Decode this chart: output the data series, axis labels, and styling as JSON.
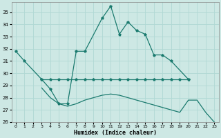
{
  "xlabel": "Humidex (Indice chaleur)",
  "bg_color": "#cde8e4",
  "grid_color": "#b0d8d4",
  "line_color": "#1a7a6e",
  "line1_x": [
    0,
    1,
    3,
    4,
    5,
    6,
    7,
    8,
    10,
    11,
    12,
    13,
    14,
    15,
    16,
    17,
    18,
    20
  ],
  "line1_y": [
    31.8,
    31.0,
    29.5,
    28.7,
    27.5,
    27.5,
    31.8,
    31.8,
    34.5,
    35.5,
    33.2,
    34.2,
    33.5,
    33.2,
    31.5,
    31.5,
    31.0,
    29.5
  ],
  "line2_x": [
    3,
    4,
    5,
    6,
    7,
    8,
    9,
    10,
    11,
    12,
    13,
    14,
    15,
    16,
    17,
    18,
    19,
    20
  ],
  "line2_y": [
    29.5,
    29.5,
    29.5,
    29.5,
    29.5,
    29.5,
    29.5,
    29.5,
    29.5,
    29.5,
    29.5,
    29.5,
    29.5,
    29.5,
    29.5,
    29.5,
    29.5,
    29.5
  ],
  "line3_x": [
    3,
    4,
    5,
    6,
    7,
    8,
    9,
    10,
    11,
    12,
    13,
    14,
    15,
    16,
    17,
    18,
    19,
    20,
    21,
    22,
    23
  ],
  "line3_y": [
    28.8,
    28.0,
    27.5,
    27.3,
    27.5,
    27.8,
    28.0,
    28.2,
    28.3,
    28.2,
    28.0,
    27.8,
    27.6,
    27.4,
    27.2,
    27.0,
    26.8,
    27.8,
    27.8,
    26.8,
    26.0
  ],
  "xlim": [
    -0.5,
    23.5
  ],
  "ylim": [
    26,
    35.8
  ],
  "xticks": [
    0,
    1,
    2,
    3,
    4,
    5,
    6,
    7,
    8,
    9,
    10,
    11,
    12,
    13,
    14,
    15,
    16,
    17,
    18,
    19,
    20,
    21,
    22,
    23
  ],
  "yticks": [
    26,
    27,
    28,
    29,
    30,
    31,
    32,
    33,
    34,
    35
  ]
}
